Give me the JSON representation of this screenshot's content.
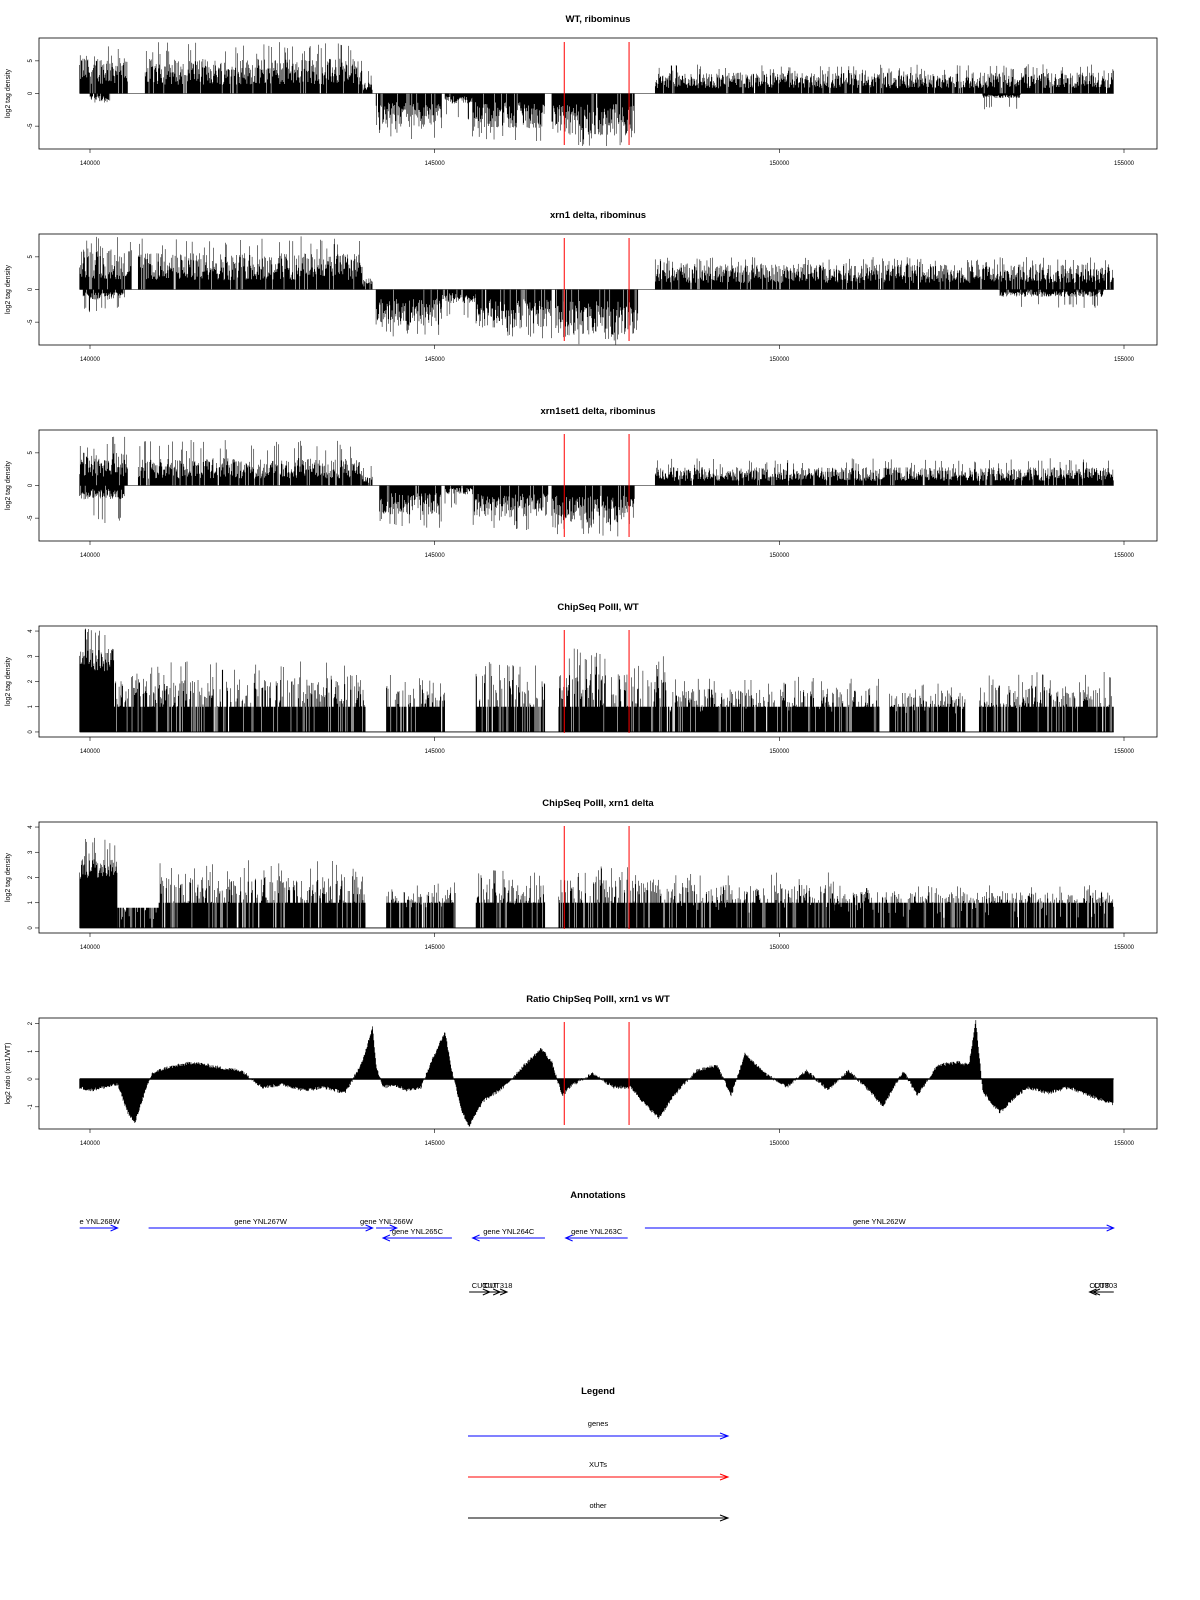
{
  "chart_data": [
    {
      "type": "bar",
      "title": "WT, ribominus",
      "ylabel": "log2 tag density",
      "xlabel": "",
      "xlim": [
        140000,
        155000
      ],
      "ylim": [
        -8.5,
        8.5
      ],
      "yticks": [
        -5,
        0,
        5
      ],
      "xticks": [
        140000,
        145000,
        150000,
        155000
      ],
      "x_tick_labels": [
        "140000",
        "145000",
        "150000",
        "155000"
      ],
      "y_tick_labels": [
        "-5",
        "0",
        "5"
      ],
      "grid": false,
      "signal": [
        {
          "start": 139850,
          "end": 140550,
          "strand": "+",
          "mean": 4.2,
          "max": 8.0
        },
        {
          "start": 140800,
          "end": 143950,
          "strand": "+",
          "mean": 3.8,
          "max": 8.0
        },
        {
          "start": 143950,
          "end": 144100,
          "strand": "+",
          "mean": 1.2,
          "max": 3.5
        },
        {
          "start": 144150,
          "end": 145100,
          "strand": "-",
          "mean": -3.8,
          "max": -7.0
        },
        {
          "start": 145150,
          "end": 145550,
          "strand": "-",
          "mean": -1.2,
          "max": -4.0
        },
        {
          "start": 145550,
          "end": 146600,
          "strand": "-",
          "mean": -3.8,
          "max": -7.5
        },
        {
          "start": 146700,
          "end": 147900,
          "strand": "-",
          "mean": -4.6,
          "max": -8.5
        },
        {
          "start": 148200,
          "end": 154850,
          "strand": "+",
          "mean": 2.3,
          "max": 4.5
        },
        {
          "start": 140000,
          "end": 140300,
          "strand": "-",
          "mean": -1.0,
          "max": -4.0
        },
        {
          "start": 152950,
          "end": 153500,
          "strand": "-",
          "mean": -0.5,
          "max": -2.5
        }
      ],
      "red_lines": [
        146880,
        147820
      ]
    },
    {
      "type": "bar",
      "title": "xrn1 delta, ribominus",
      "ylabel": "log2 tag density",
      "xlabel": "",
      "xlim": [
        140000,
        155000
      ],
      "ylim": [
        -8.5,
        8.5
      ],
      "yticks": [
        -5,
        0,
        5
      ],
      "xticks": [
        140000,
        145000,
        150000,
        155000
      ],
      "x_tick_labels": [
        "140000",
        "145000",
        "150000",
        "155000"
      ],
      "y_tick_labels": [
        "-5",
        "0",
        "5"
      ],
      "grid": false,
      "signal": [
        {
          "start": 139850,
          "end": 140600,
          "strand": "+",
          "mean": 4.4,
          "max": 8.2
        },
        {
          "start": 140700,
          "end": 143950,
          "strand": "+",
          "mean": 4.0,
          "max": 8.2
        },
        {
          "start": 143950,
          "end": 144100,
          "strand": "+",
          "mean": 1.2,
          "max": 3.5
        },
        {
          "start": 144150,
          "end": 145100,
          "strand": "-",
          "mean": -4.0,
          "max": -7.5
        },
        {
          "start": 145100,
          "end": 145600,
          "strand": "-",
          "mean": -1.5,
          "max": -4.5
        },
        {
          "start": 145600,
          "end": 146700,
          "strand": "-",
          "mean": -4.2,
          "max": -7.5
        },
        {
          "start": 146750,
          "end": 147950,
          "strand": "-",
          "mean": -5.0,
          "max": -8.5
        },
        {
          "start": 148200,
          "end": 154850,
          "strand": "+",
          "mean": 2.8,
          "max": 5.0
        },
        {
          "start": 139900,
          "end": 140500,
          "strand": "-",
          "mean": -1.2,
          "max": -3.5
        },
        {
          "start": 153200,
          "end": 154700,
          "strand": "-",
          "mean": -0.8,
          "max": -3.0
        }
      ],
      "red_lines": [
        146880,
        147820
      ]
    },
    {
      "type": "bar",
      "title": "xrn1set1 delta, ribominus",
      "ylabel": "log2 tag density",
      "xlabel": "",
      "xlim": [
        140000,
        155000
      ],
      "ylim": [
        -8.5,
        8.5
      ],
      "yticks": [
        -5,
        0,
        5
      ],
      "xticks": [
        140000,
        145000,
        150000,
        155000
      ],
      "x_tick_labels": [
        "140000",
        "145000",
        "150000",
        "155000"
      ],
      "y_tick_labels": [
        "-5",
        "0",
        "5"
      ],
      "grid": false,
      "signal": [
        {
          "start": 139850,
          "end": 140550,
          "strand": "+",
          "mean": 3.6,
          "max": 7.5
        },
        {
          "start": 140700,
          "end": 143950,
          "strand": "+",
          "mean": 3.0,
          "max": 7.0
        },
        {
          "start": 143950,
          "end": 144100,
          "strand": "+",
          "mean": 1.0,
          "max": 3.0
        },
        {
          "start": 144200,
          "end": 145100,
          "strand": "-",
          "mean": -3.2,
          "max": -6.5
        },
        {
          "start": 145150,
          "end": 145550,
          "strand": "-",
          "mean": -1.0,
          "max": -3.5
        },
        {
          "start": 145550,
          "end": 146650,
          "strand": "-",
          "mean": -3.5,
          "max": -7.0
        },
        {
          "start": 146700,
          "end": 147900,
          "strand": "-",
          "mean": -4.3,
          "max": -8.0
        },
        {
          "start": 148200,
          "end": 154850,
          "strand": "+",
          "mean": 2.0,
          "max": 4.2
        },
        {
          "start": 139850,
          "end": 140500,
          "strand": "-",
          "mean": -1.5,
          "max": -6.0
        }
      ],
      "red_lines": [
        146880,
        147820
      ]
    },
    {
      "type": "bar",
      "title": "ChipSeq PolII, WT",
      "ylabel": "log2 tag density",
      "xlabel": "",
      "xlim": [
        140000,
        155000
      ],
      "ylim": [
        -0.2,
        4.2
      ],
      "yticks": [
        0,
        1,
        2,
        3,
        4
      ],
      "xticks": [
        140000,
        145000,
        150000,
        155000
      ],
      "x_tick_labels": [
        "140000",
        "145000",
        "150000",
        "155000"
      ],
      "y_tick_labels": [
        "0",
        "1",
        "2",
        "3",
        "4"
      ],
      "grid": false,
      "signal": [
        {
          "start": 139850,
          "end": 140350,
          "strand": "+",
          "mean": 3.2,
          "max": 4.1
        },
        {
          "start": 140350,
          "end": 140450,
          "strand": "+",
          "mean": 1.5,
          "max": 2.0
        },
        {
          "start": 140450,
          "end": 144000,
          "strand": "+",
          "mean": 1.2,
          "max": 2.8
        },
        {
          "start": 144300,
          "end": 145150,
          "strand": "+",
          "mean": 1.1,
          "max": 2.3
        },
        {
          "start": 145600,
          "end": 146600,
          "strand": "+",
          "mean": 1.3,
          "max": 2.8
        },
        {
          "start": 146800,
          "end": 148400,
          "strand": "+",
          "mean": 1.5,
          "max": 3.4
        },
        {
          "start": 148400,
          "end": 151450,
          "strand": "+",
          "mean": 0.8,
          "max": 2.2
        },
        {
          "start": 151600,
          "end": 152700,
          "strand": "+",
          "mean": 0.7,
          "max": 2.0
        },
        {
          "start": 152900,
          "end": 154850,
          "strand": "+",
          "mean": 0.9,
          "max": 2.4
        }
      ],
      "red_lines": [
        146880,
        147820
      ]
    },
    {
      "type": "bar",
      "title": "ChipSeq PolII, xrn1 delta",
      "ylabel": "log2 tag density",
      "xlabel": "",
      "xlim": [
        140000,
        155000
      ],
      "ylim": [
        -0.2,
        4.2
      ],
      "yticks": [
        0,
        1,
        2,
        3,
        4
      ],
      "xticks": [
        140000,
        145000,
        150000,
        155000
      ],
      "x_tick_labels": [
        "140000",
        "145000",
        "150000",
        "155000"
      ],
      "y_tick_labels": [
        "0",
        "1",
        "2",
        "3",
        "4"
      ],
      "grid": false,
      "signal": [
        {
          "start": 139850,
          "end": 140400,
          "strand": "+",
          "mean": 2.6,
          "max": 3.6
        },
        {
          "start": 140400,
          "end": 141000,
          "strand": "+",
          "mean": 0.3,
          "max": 0.8
        },
        {
          "start": 141000,
          "end": 144000,
          "strand": "+",
          "mean": 1.1,
          "max": 2.7
        },
        {
          "start": 144300,
          "end": 145300,
          "strand": "+",
          "mean": 0.8,
          "max": 1.8
        },
        {
          "start": 145600,
          "end": 146600,
          "strand": "+",
          "mean": 0.9,
          "max": 2.3
        },
        {
          "start": 146800,
          "end": 148300,
          "strand": "+",
          "mean": 1.3,
          "max": 2.6
        },
        {
          "start": 148300,
          "end": 150800,
          "strand": "+",
          "mean": 0.6,
          "max": 2.2
        },
        {
          "start": 150800,
          "end": 154850,
          "strand": "+",
          "mean": 0.4,
          "max": 1.7
        }
      ],
      "red_lines": [
        146880,
        147820
      ]
    },
    {
      "type": "area",
      "title": "Ratio ChipSeq PolII, xrn1 vs WT",
      "ylabel": "log2 ratio (xrn1/WT)",
      "xlabel": "",
      "xlim": [
        140000,
        155000
      ],
      "ylim": [
        -1.8,
        2.2
      ],
      "yticks": [
        -1,
        0,
        1,
        2
      ],
      "xticks": [
        140000,
        145000,
        150000,
        155000
      ],
      "x_tick_labels": [
        "140000",
        "145000",
        "150000",
        "155000"
      ],
      "y_tick_labels": [
        "-1",
        "0",
        "1",
        "2"
      ],
      "grid": false,
      "x": [
        139850,
        140000,
        140200,
        140400,
        140550,
        140650,
        140750,
        140900,
        141100,
        141300,
        141500,
        141700,
        141900,
        142200,
        142500,
        142800,
        143100,
        143400,
        143700,
        143950,
        144100,
        144150,
        144250,
        144400,
        144600,
        144800,
        145000,
        145150,
        145250,
        145400,
        145500,
        145700,
        146000,
        146300,
        146550,
        146700,
        146850,
        147000,
        147300,
        147600,
        147850,
        148050,
        148250,
        148500,
        148800,
        149100,
        149300,
        149500,
        149800,
        150100,
        150400,
        150700,
        151000,
        151300,
        151500,
        151800,
        152000,
        152300,
        152600,
        152750,
        152850,
        152950,
        153050,
        153200,
        153400,
        153600,
        153900,
        154200,
        154500,
        154850
      ],
      "values": [
        -0.3,
        -0.4,
        -0.3,
        -0.2,
        -1.2,
        -1.6,
        -0.8,
        0.2,
        0.4,
        0.5,
        0.6,
        0.5,
        0.4,
        0.3,
        -0.3,
        -0.2,
        -0.4,
        -0.3,
        -0.5,
        0.6,
        1.9,
        0.5,
        -0.3,
        -0.2,
        -0.4,
        -0.3,
        0.9,
        1.7,
        0.3,
        -1.2,
        -1.7,
        -0.8,
        -0.3,
        0.5,
        1.1,
        0.6,
        -0.6,
        -0.2,
        0.2,
        -0.3,
        -0.3,
        -0.9,
        -1.4,
        -0.5,
        0.3,
        0.5,
        -0.6,
        0.9,
        0.2,
        -0.3,
        0.3,
        -0.4,
        0.3,
        -0.4,
        -1.0,
        0.3,
        -0.6,
        0.5,
        0.6,
        0.5,
        2.1,
        -0.4,
        -0.8,
        -1.2,
        -0.7,
        -0.3,
        -0.5,
        -0.3,
        -0.6,
        -0.9
      ],
      "red_lines": [
        146880,
        147820
      ]
    },
    {
      "type": "table",
      "title": "Annotations",
      "features": [
        {
          "label": "e YNL268W",
          "start": 139850,
          "end": 140400,
          "strand": "+",
          "row": 0,
          "color": "#0000ff"
        },
        {
          "label": "gene YNL267W",
          "start": 140850,
          "end": 144100,
          "strand": "+",
          "row": 0,
          "color": "#0000ff"
        },
        {
          "label": "gene YNL266W",
          "start": 144150,
          "end": 144450,
          "strand": "+",
          "row": 0,
          "color": "#0000ff"
        },
        {
          "label": "gene YNL265C",
          "start": 144250,
          "end": 145250,
          "strand": "-",
          "row": 1,
          "color": "#0000ff"
        },
        {
          "label": "gene YNL264C",
          "start": 145550,
          "end": 146600,
          "strand": "-",
          "row": 1,
          "color": "#0000ff"
        },
        {
          "label": "gene YNL263C",
          "start": 146900,
          "end": 147800,
          "strand": "-",
          "row": 1,
          "color": "#0000ff"
        },
        {
          "label": "gene YNL262W",
          "start": 148050,
          "end": 154850,
          "strand": "+",
          "row": 0,
          "color": "#0000ff"
        },
        {
          "label": "CUT",
          "start": 145500,
          "end": 145800,
          "strand": "+",
          "row": 2,
          "color": "#000000"
        },
        {
          "label": "CUT",
          "start": 145650,
          "end": 145950,
          "strand": "+",
          "row": 2,
          "color": "#000000"
        },
        {
          "label": "CUT318",
          "start": 145800,
          "end": 146050,
          "strand": "+",
          "row": 2,
          "color": "#000000"
        },
        {
          "label": "CUT",
          "start": 154500,
          "end": 154850,
          "strand": "-",
          "row": 2,
          "color": "#000000"
        },
        {
          "label": "CUT803",
          "start": 154550,
          "end": 154850,
          "strand": "-",
          "row": 2,
          "color": "#000000"
        }
      ]
    }
  ],
  "legend": {
    "title": "Legend",
    "placement": "bottom",
    "items": [
      {
        "label": "genes",
        "color": "#0000ff"
      },
      {
        "label": "XUTs",
        "color": "#ff0000"
      },
      {
        "label": "other",
        "color": "#000000"
      }
    ]
  }
}
